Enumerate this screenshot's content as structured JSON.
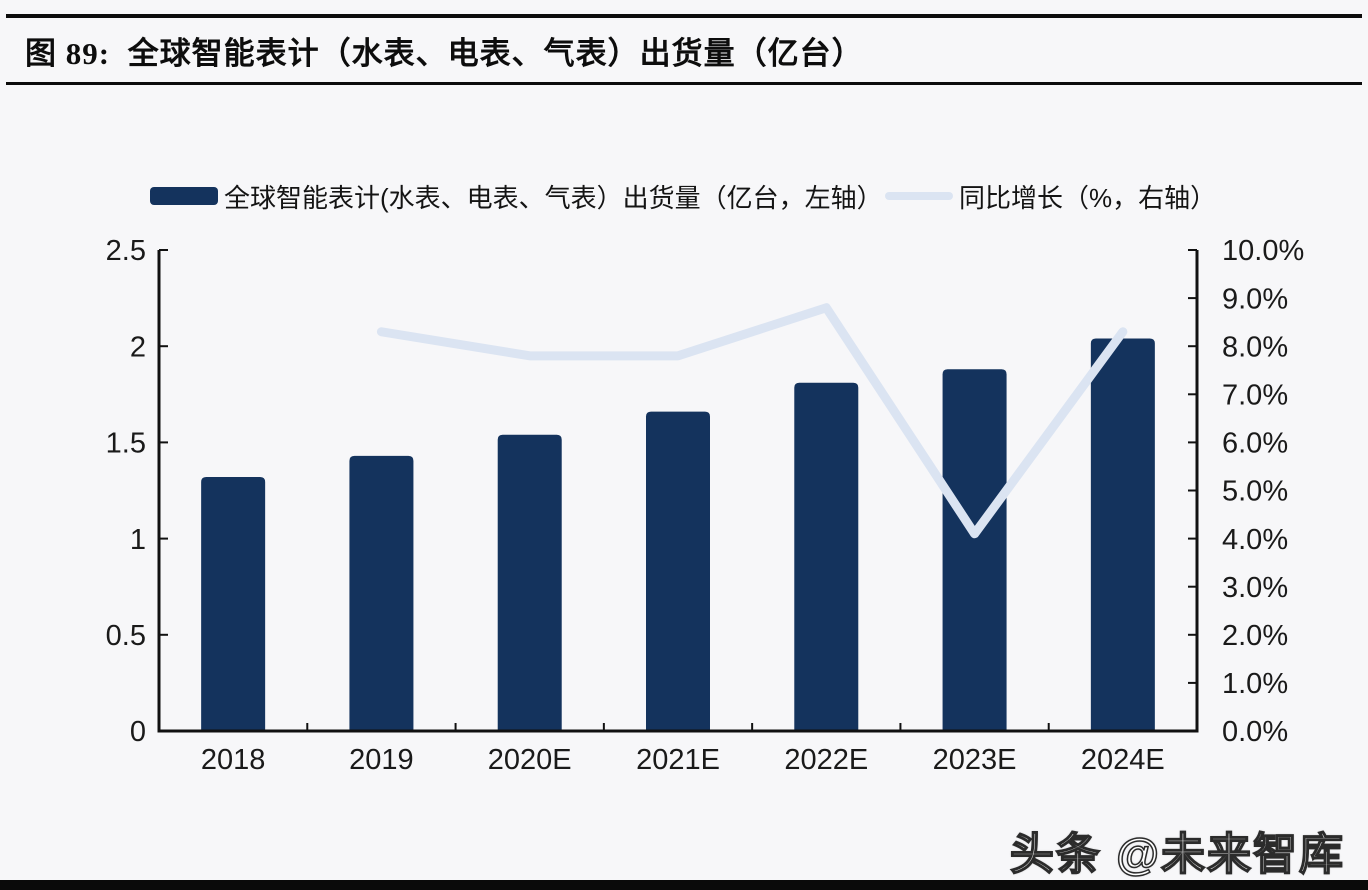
{
  "header": {
    "title": "图 89:  全球智能表计（水表、电表、气表）出货量（亿台）"
  },
  "legend": {
    "bar_label": "全球智能表计(水表、电表、气表）出货量（亿台，左轴）",
    "line_label": "同比增长（%，右轴）"
  },
  "chart_data": {
    "type": "combo",
    "title": "全球智能表计（水表、电表、气表）出货量（亿台）",
    "categories": [
      "2018",
      "2019",
      "2020E",
      "2021E",
      "2022E",
      "2023E",
      "2024E"
    ],
    "series": [
      {
        "name": "全球智能表计(水表、电表、气表）出货量（亿台，左轴）",
        "kind": "bar",
        "axis": "left",
        "unit": "亿台",
        "values": [
          1.32,
          1.43,
          1.54,
          1.66,
          1.81,
          1.88,
          2.04
        ]
      },
      {
        "name": "同比增长（%，右轴）",
        "kind": "line",
        "axis": "right",
        "unit": "%",
        "values": [
          null,
          8.3,
          7.8,
          7.8,
          8.8,
          4.1,
          8.3
        ]
      }
    ],
    "left_axis": {
      "range": [
        0,
        2.5
      ],
      "tick_step": 0.5,
      "tick_labels": [
        "0",
        "0.5",
        "1",
        "1.5",
        "2",
        "2.5"
      ]
    },
    "right_axis": {
      "range_percent": [
        0,
        10
      ],
      "tick_step_percent": 1,
      "tick_labels": [
        "0.0%",
        "1.0%",
        "2.0%",
        "3.0%",
        "4.0%",
        "5.0%",
        "6.0%",
        "7.0%",
        "8.0%",
        "9.0%",
        "10.0%"
      ]
    },
    "grid": false,
    "legend_position": "top"
  },
  "colors": {
    "bar": "#14335d",
    "line": "#dbe4f2",
    "axis": "#111111",
    "text": "#1a1a1a",
    "rule": "#0c0c0c",
    "background": "#f7f7f9",
    "watermark_fill": "#ffffff"
  },
  "footer": {
    "watermark": "头条 @未来智库"
  }
}
